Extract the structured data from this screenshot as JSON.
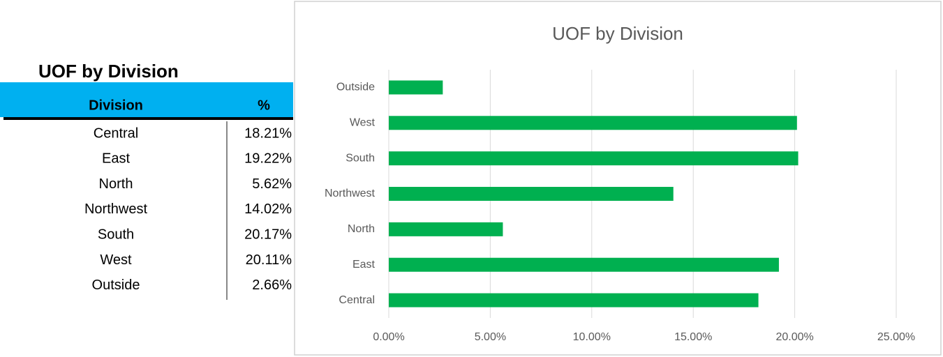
{
  "table": {
    "title": "UOF by Division",
    "headers": [
      "Division",
      "%"
    ],
    "rows": [
      [
        "Central",
        "18.21%"
      ],
      [
        "East",
        "19.22%"
      ],
      [
        "North",
        "5.62%"
      ],
      [
        "Northwest",
        "14.02%"
      ],
      [
        "South",
        "20.17%"
      ],
      [
        "West",
        "20.11%"
      ],
      [
        "Outside",
        "2.66%"
      ]
    ]
  },
  "chart_data": {
    "type": "bar",
    "orientation": "horizontal",
    "title": "UOF by Division",
    "categories": [
      "Central",
      "East",
      "North",
      "Northwest",
      "South",
      "West",
      "Outside"
    ],
    "values": [
      18.21,
      19.22,
      5.62,
      14.02,
      20.17,
      20.11,
      2.66
    ],
    "color": "#00b050",
    "xlim": [
      0,
      25
    ],
    "xticks": [
      {
        "value": 0,
        "label": "0.00%"
      },
      {
        "value": 5,
        "label": "5.00%"
      },
      {
        "value": 10,
        "label": "10.00%"
      },
      {
        "value": 15,
        "label": "15.00%"
      },
      {
        "value": 20,
        "label": "20.00%"
      },
      {
        "value": 25,
        "label": "25.00%"
      }
    ],
    "grid": true
  }
}
